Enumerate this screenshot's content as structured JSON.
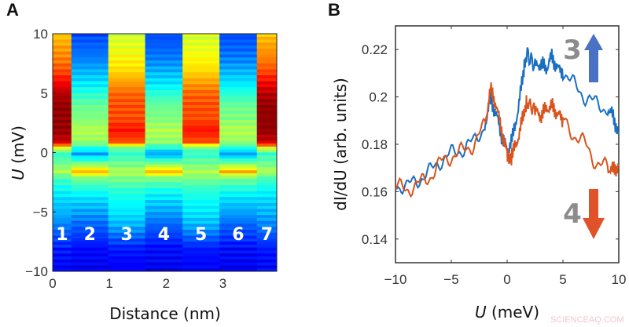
{
  "watermark": "SCIENCEAQ.COM",
  "chart_data": [
    {
      "panel": "A",
      "type": "heatmap",
      "xlabel": "Distance (nm)",
      "ylabel_italic": "U",
      "ylabel_rest": " (mV)",
      "xlim": [
        0,
        3.95
      ],
      "ylim": [
        -10,
        10
      ],
      "xticks": [
        "0",
        "1",
        "2",
        "3"
      ],
      "yticks": [
        "10",
        "5",
        "0",
        "−5",
        "−10"
      ],
      "colormap": "jet",
      "site_labels": [
        "1",
        "2",
        "3",
        "4",
        "5",
        "6",
        "7"
      ],
      "site_edges_nm": [
        0,
        0.33,
        0.98,
        1.63,
        2.29,
        2.94,
        3.6,
        3.95
      ],
      "U": [
        10,
        9,
        8,
        7,
        6,
        5,
        4,
        3,
        2,
        1,
        0.5,
        0,
        -1,
        -1.5,
        -2,
        -3,
        -4,
        -5,
        -6,
        -7,
        -8,
        -9,
        -10
      ],
      "profiles": {
        "edge": [
          0.68,
          0.72,
          0.75,
          0.8,
          0.88,
          0.95,
          0.98,
          0.98,
          0.98,
          0.92,
          0.6,
          0.42,
          0.5,
          0.55,
          0.45,
          0.38,
          0.33,
          0.3,
          0.25,
          0.2,
          0.15,
          0.13,
          0.12
        ],
        "bright": [
          0.58,
          0.6,
          0.63,
          0.66,
          0.72,
          0.78,
          0.8,
          0.8,
          0.86,
          0.8,
          0.48,
          0.42,
          0.5,
          0.55,
          0.5,
          0.42,
          0.38,
          0.35,
          0.3,
          0.22,
          0.15,
          0.13,
          0.12
        ],
        "dark": [
          0.2,
          0.22,
          0.25,
          0.3,
          0.35,
          0.42,
          0.48,
          0.5,
          0.55,
          0.52,
          0.4,
          0.28,
          0.55,
          0.7,
          0.5,
          0.4,
          0.33,
          0.28,
          0.22,
          0.18,
          0.13,
          0.12,
          0.1
        ]
      },
      "site_profile": [
        "edge",
        "dark",
        "bright",
        "dark",
        "bright",
        "dark",
        "edge"
      ]
    },
    {
      "panel": "B",
      "type": "line",
      "xlabel_italic": "U",
      "xlabel_rest": " (meV)",
      "ylabel": "dI/dU (arb. units)",
      "xlim": [
        -10,
        10
      ],
      "ylim": [
        0.13,
        0.23
      ],
      "xticks": [
        "−10",
        "−5",
        "0",
        "5",
        "10"
      ],
      "yticks": [
        "0.22",
        "0.2",
        "0.18",
        "0.16",
        "0.14"
      ],
      "series": [
        {
          "name": "3",
          "color": "#1a6fc0",
          "arrow": "up",
          "arrow_color": "#4a72c4",
          "x": [
            -10,
            -9,
            -8,
            -7,
            -6,
            -5,
            -4,
            -3,
            -2,
            -1.5,
            -1,
            -0.5,
            0,
            0.5,
            1,
            1.5,
            1.8,
            2.5,
            3,
            3.5,
            4,
            4.5,
            5,
            6,
            7,
            8,
            9,
            9.5,
            10
          ],
          "y": [
            0.163,
            0.162,
            0.165,
            0.168,
            0.173,
            0.176,
            0.178,
            0.181,
            0.188,
            0.199,
            0.193,
            0.184,
            0.177,
            0.183,
            0.195,
            0.212,
            0.218,
            0.213,
            0.214,
            0.212,
            0.217,
            0.212,
            0.211,
            0.205,
            0.2,
            0.197,
            0.195,
            0.192,
            0.184
          ]
        },
        {
          "name": "4",
          "color": "#d9541e",
          "arrow": "down",
          "arrow_color": "#e0522a",
          "x": [
            -10,
            -9,
            -8,
            -7,
            -6,
            -5,
            -4,
            -3,
            -2,
            -1.5,
            -1,
            -0.5,
            0,
            0.2,
            0.5,
            1,
            1.5,
            1.8,
            2.5,
            3,
            3.5,
            4,
            4.5,
            5,
            6,
            7,
            8,
            9,
            9.5,
            10
          ],
          "y": [
            0.162,
            0.161,
            0.163,
            0.166,
            0.172,
            0.175,
            0.177,
            0.18,
            0.188,
            0.203,
            0.197,
            0.186,
            0.176,
            0.173,
            0.176,
            0.183,
            0.193,
            0.198,
            0.194,
            0.192,
            0.195,
            0.196,
            0.193,
            0.19,
            0.184,
            0.18,
            0.172,
            0.17,
            0.169,
            0.171
          ]
        }
      ]
    }
  ]
}
